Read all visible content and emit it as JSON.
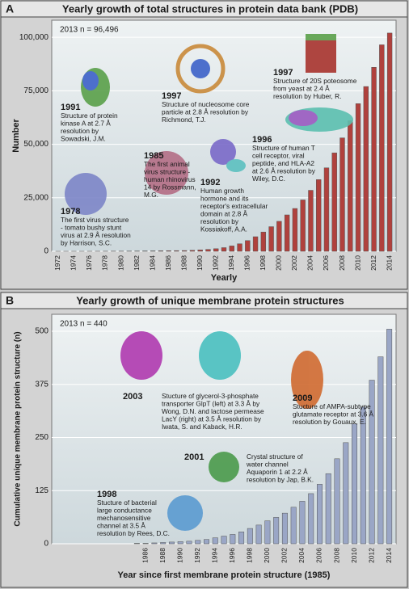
{
  "chart_data": [
    {
      "type": "bar",
      "panel": "A",
      "title": "Yearly growth of total structures in protein data bank (PDB)",
      "ylabel": "Number",
      "xlabel": "Yearly",
      "note": "2013 n = 96,496",
      "color": "#b0413d",
      "categories": [
        "1972",
        null,
        "1974",
        null,
        "1976",
        null,
        "1978",
        null,
        "1980",
        null,
        "1982",
        null,
        "1984",
        null,
        "1986",
        null,
        "1988",
        null,
        "1990",
        null,
        "1992",
        null,
        "1994",
        null,
        "1996",
        null,
        "1998",
        null,
        "2000",
        null,
        "2002",
        null,
        "2004",
        null,
        "2006",
        null,
        "2008",
        null,
        "2010",
        null,
        "2012",
        null,
        "2014"
      ],
      "values": [
        7,
        9,
        12,
        13,
        20,
        30,
        40,
        60,
        70,
        100,
        130,
        160,
        190,
        230,
        280,
        300,
        340,
        450,
        650,
        880,
        1200,
        1700,
        2500,
        3500,
        5000,
        6800,
        9000,
        11500,
        14000,
        17000,
        20000,
        24000,
        28500,
        33500,
        39000,
        46000,
        53000,
        61000,
        69000,
        77000,
        86000,
        96496,
        102000
      ],
      "ylim": [
        0,
        108000
      ],
      "yticks": [
        0,
        {
          "value": 25000,
          "label": "25,000"
        },
        {
          "value": 50000,
          "label": "50,000"
        },
        {
          "value": 75000,
          "label": "75,000"
        },
        {
          "value": 100000,
          "label": "100,000"
        }
      ],
      "grid": true,
      "annotations": [
        {
          "year": "1991",
          "text": [
            "Structure of protein",
            "kinase A at 2.7 Å",
            "resolution by",
            "Sowadski, J.M."
          ]
        },
        {
          "year": "1997",
          "text": [
            "Structure of nucleosome core",
            "particle at 2.8 Å resolution by",
            "Richmond, T.J."
          ]
        },
        {
          "year": "1997",
          "text": [
            "Structure of 20S poteosome",
            "from yeast at 2.4 Å",
            "resolution by Huber, R."
          ]
        },
        {
          "year": "1996",
          "text": [
            "Structure of human T",
            "cell receptor, viral",
            "peptide, and HLA-A2",
            "at 2.6 Å resolution by",
            "Wiley, D.C."
          ]
        },
        {
          "year": "1985",
          "text": [
            "The first animal",
            "virus structure -",
            "human rhinovirus",
            "14 by Rossmann,",
            "M.G."
          ]
        },
        {
          "year": "1992",
          "text": [
            "Human growth",
            "hormone and its",
            "receptor's extracellular",
            "domain at 2.8 Å",
            "resolution by",
            "Kossiakoff, A.A."
          ]
        },
        {
          "year": "1978",
          "text": [
            "The first virus structure",
            "- tomato bushy stunt",
            "virus at 2.9 Å resolution",
            "by Harrison, S.C."
          ]
        }
      ]
    },
    {
      "type": "bar",
      "panel": "B",
      "title": "Yearly growth of unique membrane protein structures",
      "ylabel": "Cumulative unique membrane protein structure (n)",
      "xlabel": "Year since first membrane protein structure (1985)",
      "note": "2013 n = 440",
      "color": "#9aa6c6",
      "categories": [
        null,
        "1986",
        null,
        "1988",
        null,
        "1990",
        null,
        "1992",
        null,
        "1994",
        null,
        "1996",
        null,
        "1998",
        null,
        "2000",
        null,
        "2002",
        null,
        "2004",
        null,
        "2006",
        null,
        "2008",
        null,
        "2010",
        null,
        "2012",
        null,
        "2014"
      ],
      "values": [
        1,
        1,
        2,
        3,
        4,
        5,
        6,
        8,
        10,
        14,
        18,
        22,
        28,
        36,
        44,
        54,
        62,
        72,
        86,
        100,
        118,
        140,
        165,
        200,
        238,
        282,
        322,
        385,
        440,
        505
      ],
      "ylim": [
        0,
        540
      ],
      "yticks": [
        0,
        125,
        250,
        375,
        500
      ],
      "grid": true,
      "annotations": [
        {
          "year": "2003",
          "text": [
            "Stucture of glycerol-3-phosphate",
            "transporter GlpT (left) at 3.3 Å by",
            "Wong, D.N. and lactose permease",
            "LacY (right) at 3.5 Å resolution by",
            "Iwata, S. and Kaback, H.R."
          ]
        },
        {
          "year": "2009",
          "text": [
            "Stucture of AMPA-subtype",
            "glutamate receptor at 3.6 Å",
            "resolution by Gouaux, E."
          ]
        },
        {
          "year": "2001",
          "text": [
            "Crystal structure of",
            "water channel",
            "Aquaporin 1 at 2.2 Å",
            "resolution by Jap, B.K."
          ]
        },
        {
          "year": "1998",
          "text": [
            "Stucture of bacterial",
            "large conductance",
            "mechanosensitive",
            "channel at 3.5 Å",
            "resolution by Rees, D.C."
          ]
        }
      ]
    }
  ]
}
